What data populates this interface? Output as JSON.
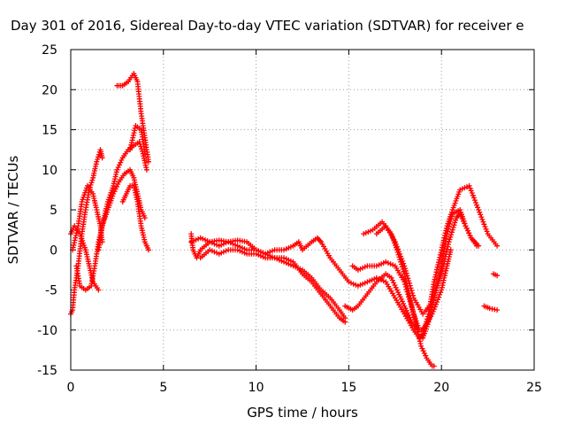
{
  "chart_data": {
    "type": "scatter",
    "title": "Day 301 of 2016, Sidereal Day-to-day VTEC variation (SDTVAR) for receiver e",
    "xlabel": "GPS time / hours",
    "ylabel": "SDTVAR / TECUs",
    "xlim": [
      0,
      25
    ],
    "ylim": [
      -15,
      25
    ],
    "xticks": [
      "0",
      "5",
      "10",
      "15",
      "20",
      "25"
    ],
    "yticks": [
      "-15",
      "-10",
      "-5",
      "0",
      "5",
      "10",
      "15",
      "20",
      "25"
    ],
    "grid": true,
    "legend": "none",
    "marker": "plus",
    "color": "#ff0000",
    "series": [
      {
        "points": [
          [
            0,
            -8
          ],
          [
            0.1,
            -7.5
          ],
          [
            0.2,
            -5
          ],
          [
            0.4,
            -2
          ],
          [
            0.6,
            2
          ],
          [
            0.8,
            5
          ],
          [
            1.0,
            7.5
          ],
          [
            1.2,
            9
          ],
          [
            1.4,
            11
          ],
          [
            1.6,
            12.5
          ],
          [
            1.7,
            11.5
          ]
        ]
      },
      {
        "points": [
          [
            0,
            2
          ],
          [
            0.2,
            3
          ],
          [
            0.5,
            2
          ],
          [
            0.8,
            0
          ],
          [
            1.0,
            -2
          ],
          [
            1.2,
            -4
          ],
          [
            1.5,
            -5
          ]
        ]
      },
      {
        "points": [
          [
            0.1,
            0
          ],
          [
            0.4,
            3
          ],
          [
            0.6,
            6
          ],
          [
            0.9,
            8
          ],
          [
            1.2,
            7
          ],
          [
            1.4,
            5
          ],
          [
            1.6,
            3
          ],
          [
            1.7,
            1
          ]
        ]
      },
      {
        "points": [
          [
            0.3,
            -2
          ],
          [
            0.5,
            -4.5
          ],
          [
            0.8,
            -5
          ],
          [
            1.1,
            -4.5
          ],
          [
            1.3,
            -2
          ],
          [
            1.5,
            1
          ],
          [
            1.8,
            4
          ],
          [
            2.0,
            6
          ],
          [
            2.3,
            8
          ],
          [
            2.5,
            10
          ],
          [
            2.8,
            11.5
          ],
          [
            3.1,
            12.5
          ],
          [
            3.4,
            13
          ],
          [
            3.7,
            13.5
          ],
          [
            3.9,
            12
          ],
          [
            4.1,
            10
          ]
        ]
      },
      {
        "points": [
          [
            1.5,
            0
          ],
          [
            1.7,
            3
          ],
          [
            2.0,
            5
          ],
          [
            2.3,
            7
          ],
          [
            2.6,
            8.5
          ],
          [
            2.9,
            9.5
          ],
          [
            3.2,
            10
          ],
          [
            3.4,
            9
          ],
          [
            3.6,
            7
          ],
          [
            3.8,
            5
          ],
          [
            4.0,
            4
          ]
        ]
      },
      {
        "points": [
          [
            2.5,
            20.5
          ],
          [
            2.8,
            20.5
          ],
          [
            3.1,
            21
          ],
          [
            3.4,
            22
          ],
          [
            3.6,
            21
          ],
          [
            3.8,
            17
          ],
          [
            4.0,
            14
          ],
          [
            4.2,
            11
          ]
        ]
      },
      {
        "points": [
          [
            2.8,
            6
          ],
          [
            3.0,
            7
          ],
          [
            3.2,
            8
          ],
          [
            3.4,
            8
          ],
          [
            3.6,
            6
          ],
          [
            3.8,
            3
          ],
          [
            4.0,
            1
          ],
          [
            4.2,
            0
          ]
        ]
      },
      {
        "points": [
          [
            3.2,
            12.5
          ],
          [
            3.5,
            15.5
          ],
          [
            3.8,
            15
          ],
          [
            4.0,
            12
          ]
        ]
      },
      {
        "points": [
          [
            6.5,
            2
          ],
          [
            6.6,
            0
          ],
          [
            6.8,
            -1
          ],
          [
            7.0,
            0
          ],
          [
            7.5,
            1
          ],
          [
            8.0,
            0.5
          ],
          [
            8.5,
            1
          ],
          [
            9.0,
            0.5
          ],
          [
            9.5,
            0
          ],
          [
            10.0,
            0
          ],
          [
            10.5,
            -0.5
          ],
          [
            11.0,
            -1
          ],
          [
            11.5,
            -1
          ],
          [
            12.0,
            -1.5
          ],
          [
            12.5,
            -3
          ],
          [
            13.0,
            -4
          ],
          [
            13.5,
            -5.5
          ],
          [
            14.0,
            -7
          ],
          [
            14.5,
            -8.5
          ],
          [
            14.8,
            -9
          ]
        ]
      },
      {
        "points": [
          [
            6.5,
            1
          ],
          [
            7.0,
            1.5
          ],
          [
            7.5,
            1
          ],
          [
            8.0,
            1.2
          ],
          [
            8.5,
            1
          ],
          [
            9.0,
            1.2
          ],
          [
            9.5,
            1
          ],
          [
            10.0,
            0
          ],
          [
            10.5,
            -0.5
          ],
          [
            11.0,
            0
          ],
          [
            11.5,
            0
          ],
          [
            12.0,
            0.5
          ],
          [
            12.3,
            1
          ],
          [
            12.5,
            0
          ],
          [
            13.0,
            1
          ],
          [
            13.3,
            1.5
          ],
          [
            13.5,
            1
          ],
          [
            14.0,
            -1
          ],
          [
            14.5,
            -2.5
          ],
          [
            15.0,
            -4
          ],
          [
            15.5,
            -4.5
          ],
          [
            16.0,
            -4
          ],
          [
            16.5,
            -3.5
          ],
          [
            17.0,
            -4
          ],
          [
            17.5,
            -6
          ],
          [
            18.0,
            -8
          ],
          [
            18.5,
            -10
          ],
          [
            18.8,
            -11
          ],
          [
            19.0,
            -10.5
          ],
          [
            19.3,
            -8
          ],
          [
            19.6,
            -4
          ],
          [
            20.0,
            0
          ],
          [
            20.3,
            3
          ],
          [
            20.6,
            5
          ],
          [
            21.0,
            7.5
          ],
          [
            21.5,
            8
          ],
          [
            22.0,
            5
          ],
          [
            22.5,
            2
          ],
          [
            23.0,
            0.5
          ]
        ]
      },
      {
        "points": [
          [
            7.0,
            -1
          ],
          [
            7.5,
            0
          ],
          [
            8.0,
            -0.5
          ],
          [
            8.5,
            0
          ],
          [
            9.0,
            0
          ],
          [
            9.5,
            -0.5
          ],
          [
            10.0,
            -0.5
          ],
          [
            10.5,
            -1
          ],
          [
            11.0,
            -1
          ],
          [
            11.5,
            -1.5
          ],
          [
            12.0,
            -2
          ],
          [
            12.5,
            -2.5
          ],
          [
            13.0,
            -3.5
          ],
          [
            13.5,
            -5
          ],
          [
            14.0,
            -6
          ],
          [
            14.5,
            -7.5
          ],
          [
            14.8,
            -8.5
          ]
        ]
      },
      {
        "points": [
          [
            14.8,
            -7
          ],
          [
            15.2,
            -7.5
          ],
          [
            15.5,
            -7
          ],
          [
            16.0,
            -5.5
          ],
          [
            16.5,
            -4
          ],
          [
            17.0,
            -3
          ],
          [
            17.3,
            -3.5
          ],
          [
            17.6,
            -5
          ],
          [
            18.0,
            -7
          ],
          [
            18.4,
            -9
          ],
          [
            18.7,
            -10
          ]
        ]
      },
      {
        "points": [
          [
            15.2,
            -2
          ],
          [
            15.5,
            -2.5
          ],
          [
            16.0,
            -2
          ],
          [
            16.5,
            -2
          ],
          [
            17.0,
            -1.5
          ],
          [
            17.5,
            -2
          ],
          [
            18.0,
            -4
          ],
          [
            18.5,
            -8
          ],
          [
            18.8,
            -10
          ],
          [
            19.0,
            -10
          ],
          [
            19.5,
            -8
          ],
          [
            20.0,
            -5
          ],
          [
            20.3,
            -2
          ],
          [
            20.5,
            0
          ]
        ]
      },
      {
        "points": [
          [
            15.8,
            2
          ],
          [
            16.3,
            2.5
          ],
          [
            16.8,
            3.5
          ],
          [
            17.3,
            2
          ],
          [
            17.6,
            0
          ],
          [
            18.0,
            -3
          ],
          [
            18.3,
            -6
          ],
          [
            18.6,
            -9
          ],
          [
            18.9,
            -12
          ],
          [
            19.2,
            -13.5
          ],
          [
            19.5,
            -14.5
          ],
          [
            19.6,
            -14.5
          ]
        ]
      },
      {
        "points": [
          [
            16.5,
            2
          ],
          [
            17.0,
            3
          ],
          [
            17.5,
            1
          ],
          [
            18.0,
            -2
          ],
          [
            18.5,
            -6
          ],
          [
            19.0,
            -8
          ],
          [
            19.5,
            -6.5
          ],
          [
            20.0,
            -3
          ],
          [
            20.4,
            1
          ],
          [
            20.8,
            4
          ],
          [
            21.0,
            4.5
          ],
          [
            21.3,
            3
          ],
          [
            21.6,
            1.5
          ],
          [
            22.0,
            0.5
          ]
        ]
      },
      {
        "points": [
          [
            19.0,
            -11
          ],
          [
            19.3,
            -9
          ],
          [
            19.6,
            -6
          ],
          [
            20.0,
            -2
          ],
          [
            20.3,
            2
          ],
          [
            20.6,
            4.5
          ],
          [
            21.0,
            5
          ],
          [
            21.3,
            3
          ],
          [
            21.6,
            1.5
          ],
          [
            21.9,
            0.5
          ]
        ]
      },
      {
        "points": [
          [
            22.3,
            -7
          ],
          [
            22.6,
            -7.3
          ],
          [
            23.0,
            -7.5
          ]
        ]
      },
      {
        "points": [
          [
            22.8,
            -3
          ],
          [
            23.0,
            -3.2
          ]
        ]
      }
    ]
  }
}
